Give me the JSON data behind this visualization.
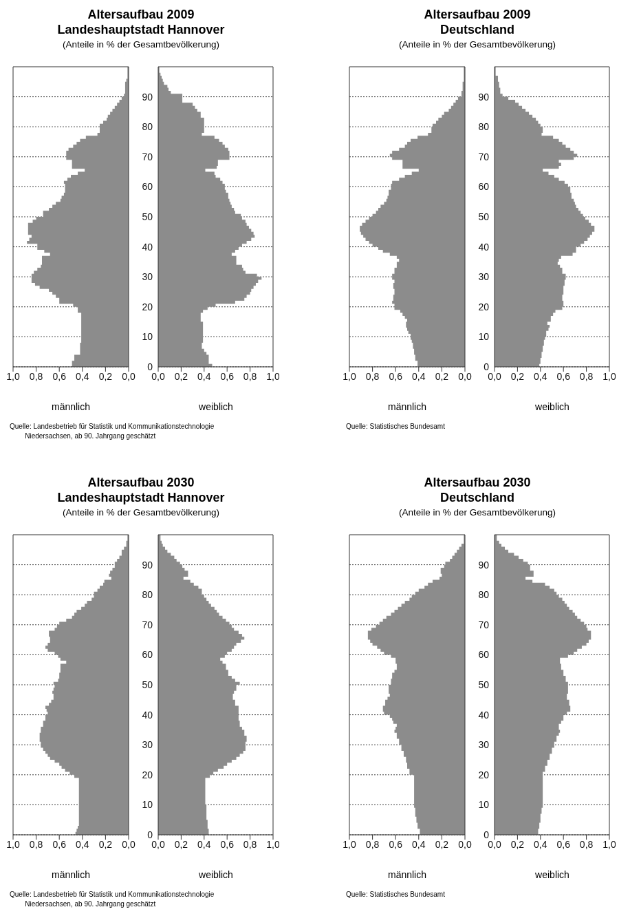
{
  "chart_data": [
    {
      "type": "area",
      "orientation": "horizontal",
      "title": "Altersaufbau 2009\nLandeshauptstadt Hannover",
      "subtitle": "(Anteile in % der Gesamtbevölkerung)",
      "xlabel": "männlich",
      "annotations": [
        "Quelle: Landesbetrieb für Statistik und Kommunikationstechnologie\n        Niedersachsen, ab 90. Jahrgang geschätzt"
      ],
      "color": "#8c8c8c",
      "xlim": [
        1,
        0
      ],
      "xticks": [
        {
          "value": 1,
          "label": "1,0"
        },
        {
          "value": 0.8,
          "label": "0,8"
        },
        {
          "value": 0.6,
          "label": "0,6"
        },
        {
          "value": 0.4,
          "label": "0,4"
        },
        {
          "value": 0.2,
          "label": "0,2"
        },
        {
          "value": 0,
          "label": "0,0"
        }
      ],
      "ylim": [
        0,
        100
      ],
      "yticks": [
        0,
        10,
        20,
        30,
        40,
        50,
        60,
        70,
        80,
        90
      ],
      "grid": "y",
      "tick_labels": "x",
      "x": [
        0,
        2,
        4,
        8,
        18,
        20,
        21,
        23,
        24,
        25,
        26,
        27,
        28,
        31,
        32,
        33,
        34,
        37,
        38,
        39,
        41,
        42,
        43,
        44,
        48,
        49,
        50,
        52,
        53,
        54,
        55,
        56,
        57,
        58,
        61,
        62,
        63,
        64,
        65,
        66,
        69,
        72,
        73,
        74,
        75,
        76,
        77,
        78,
        81,
        82,
        83,
        84,
        85,
        86,
        87,
        88,
        89,
        90,
        91,
        95,
        96,
        100
      ],
      "values": [
        0.49,
        0.47,
        0.42,
        0.41,
        0.44,
        0.48,
        0.6,
        0.63,
        0.66,
        0.69,
        0.77,
        0.81,
        0.84,
        0.82,
        0.79,
        0.76,
        0.75,
        0.68,
        0.73,
        0.79,
        0.88,
        0.86,
        0.84,
        0.87,
        0.83,
        0.8,
        0.74,
        0.69,
        0.66,
        0.63,
        0.59,
        0.58,
        0.56,
        0.55,
        0.56,
        0.53,
        0.5,
        0.44,
        0.38,
        0.49,
        0.54,
        0.52,
        0.48,
        0.45,
        0.42,
        0.37,
        0.27,
        0.25,
        0.22,
        0.19,
        0.18,
        0.16,
        0.14,
        0.12,
        0.1,
        0.08,
        0.06,
        0.04,
        0.03,
        0.02,
        0.01,
        0.01
      ]
    },
    {
      "type": "area",
      "orientation": "horizontal",
      "xlabel": "weiblich",
      "color": "#8c8c8c",
      "xlim": [
        0,
        1
      ],
      "xticks": [
        {
          "value": 0,
          "label": "0,0"
        },
        {
          "value": 0.2,
          "label": "0,2"
        },
        {
          "value": 0.4,
          "label": "0,4"
        },
        {
          "value": 0.6,
          "label": "0,6"
        },
        {
          "value": 0.8,
          "label": "0,8"
        },
        {
          "value": 1,
          "label": "1,0"
        }
      ],
      "ylim": [
        0,
        100
      ],
      "yticks": [
        0,
        10,
        20,
        30,
        40,
        50,
        60,
        70,
        80,
        90
      ],
      "grid": "y",
      "x": [
        0,
        1,
        4,
        5,
        6,
        8,
        15,
        18,
        19,
        20,
        21,
        22,
        23,
        24,
        25,
        26,
        27,
        28,
        29,
        30,
        31,
        32,
        33,
        34,
        37,
        38,
        39,
        40,
        41,
        42,
        43,
        44,
        45,
        46,
        47,
        48,
        49,
        50,
        51,
        52,
        53,
        54,
        55,
        56,
        58,
        59,
        61,
        62,
        63,
        64,
        65,
        66,
        67,
        69,
        72,
        73,
        74,
        75,
        76,
        77,
        78,
        83,
        85,
        86,
        87,
        88,
        91,
        92,
        93,
        94,
        95,
        96,
        97,
        98,
        100
      ],
      "values": [
        0.47,
        0.44,
        0.42,
        0.4,
        0.38,
        0.39,
        0.37,
        0.39,
        0.43,
        0.5,
        0.67,
        0.75,
        0.77,
        0.8,
        0.81,
        0.83,
        0.85,
        0.87,
        0.9,
        0.86,
        0.76,
        0.74,
        0.73,
        0.68,
        0.64,
        0.67,
        0.7,
        0.73,
        0.77,
        0.81,
        0.84,
        0.83,
        0.81,
        0.79,
        0.77,
        0.76,
        0.73,
        0.72,
        0.67,
        0.66,
        0.64,
        0.63,
        0.62,
        0.61,
        0.59,
        0.58,
        0.56,
        0.54,
        0.5,
        0.49,
        0.41,
        0.51,
        0.52,
        0.62,
        0.61,
        0.58,
        0.56,
        0.53,
        0.49,
        0.38,
        0.4,
        0.37,
        0.34,
        0.32,
        0.3,
        0.21,
        0.11,
        0.09,
        0.08,
        0.05,
        0.04,
        0.03,
        0.02,
        0.01,
        0.01
      ]
    },
    {
      "type": "area",
      "orientation": "horizontal",
      "title": "Altersaufbau 2009\nDeutschland",
      "subtitle": "(Anteile in % der Gesamtbevölkerung)",
      "xlabel": "männlich",
      "annotations": [
        "Quelle: Statistisches Bundesamt"
      ],
      "color": "#8c8c8c",
      "xlim": [
        1,
        0
      ],
      "xticks": [
        {
          "value": 1,
          "label": "1,0"
        },
        {
          "value": 0.8,
          "label": "0,8"
        },
        {
          "value": 0.6,
          "label": "0,6"
        },
        {
          "value": 0.4,
          "label": "0,4"
        },
        {
          "value": 0.2,
          "label": "0,2"
        },
        {
          "value": 0,
          "label": "0,0"
        }
      ],
      "ylim": [
        0,
        100
      ],
      "yticks": [
        0,
        10,
        20,
        30,
        40,
        50,
        60,
        70,
        80,
        90
      ],
      "grid": "y",
      "tick_labels": "x",
      "x": [
        0,
        2,
        4,
        6,
        8,
        9,
        11,
        12,
        13,
        15,
        16,
        17,
        18,
        19,
        21,
        22,
        24,
        26,
        28,
        29,
        31,
        33,
        35,
        36,
        37,
        38,
        39,
        40,
        41,
        42,
        43,
        44,
        45,
        47,
        48,
        49,
        50,
        51,
        52,
        53,
        54,
        55,
        56,
        57,
        59,
        61,
        62,
        63,
        64,
        65,
        66,
        69,
        70,
        71,
        72,
        73,
        74,
        75,
        76,
        77,
        78,
        80,
        81,
        82,
        83,
        84,
        85,
        86,
        87,
        88,
        89,
        90,
        92,
        95,
        100
      ],
      "values": [
        0.41,
        0.43,
        0.44,
        0.45,
        0.46,
        0.47,
        0.49,
        0.5,
        0.51,
        0.5,
        0.52,
        0.54,
        0.56,
        0.61,
        0.63,
        0.62,
        0.61,
        0.62,
        0.61,
        0.63,
        0.61,
        0.59,
        0.57,
        0.59,
        0.65,
        0.71,
        0.75,
        0.8,
        0.83,
        0.86,
        0.88,
        0.9,
        0.91,
        0.89,
        0.86,
        0.83,
        0.8,
        0.77,
        0.75,
        0.73,
        0.7,
        0.68,
        0.67,
        0.66,
        0.64,
        0.63,
        0.57,
        0.52,
        0.46,
        0.4,
        0.54,
        0.63,
        0.65,
        0.63,
        0.57,
        0.52,
        0.5,
        0.47,
        0.41,
        0.32,
        0.29,
        0.28,
        0.25,
        0.23,
        0.2,
        0.18,
        0.14,
        0.12,
        0.1,
        0.08,
        0.06,
        0.03,
        0.02,
        0.01,
        0.01
      ]
    },
    {
      "type": "area",
      "orientation": "horizontal",
      "xlabel": "weiblich",
      "color": "#8c8c8c",
      "xlim": [
        0,
        1
      ],
      "xticks": [
        {
          "value": 0,
          "label": "0,0"
        },
        {
          "value": 0.2,
          "label": "0,2"
        },
        {
          "value": 0.4,
          "label": "0,4"
        },
        {
          "value": 0.6,
          "label": "0,6"
        },
        {
          "value": 0.8,
          "label": "0,8"
        },
        {
          "value": 1,
          "label": "1,0"
        }
      ],
      "ylim": [
        0,
        100
      ],
      "yticks": [
        0,
        10,
        20,
        30,
        40,
        50,
        60,
        70,
        80,
        90
      ],
      "grid": "y",
      "x": [
        0,
        1,
        3,
        5,
        7,
        9,
        10,
        12,
        13,
        14,
        15,
        17,
        18,
        19,
        20,
        22,
        24,
        27,
        29,
        31,
        33,
        34,
        35,
        36,
        37,
        38,
        40,
        41,
        42,
        43,
        44,
        45,
        47,
        48,
        49,
        50,
        51,
        52,
        53,
        54,
        55,
        56,
        58,
        60,
        61,
        62,
        63,
        64,
        65,
        66,
        67,
        68,
        69,
        70,
        71,
        72,
        73,
        74,
        75,
        76,
        77,
        78,
        80,
        81,
        82,
        83,
        84,
        85,
        86,
        87,
        88,
        89,
        90,
        91,
        93,
        95,
        97,
        100
      ],
      "values": [
        0.39,
        0.4,
        0.41,
        0.42,
        0.43,
        0.44,
        0.45,
        0.47,
        0.48,
        0.46,
        0.49,
        0.51,
        0.53,
        0.59,
        0.6,
        0.59,
        0.6,
        0.61,
        0.62,
        0.59,
        0.57,
        0.55,
        0.56,
        0.58,
        0.68,
        0.71,
        0.75,
        0.78,
        0.81,
        0.83,
        0.85,
        0.87,
        0.84,
        0.82,
        0.79,
        0.77,
        0.75,
        0.73,
        0.71,
        0.7,
        0.69,
        0.67,
        0.66,
        0.64,
        0.61,
        0.56,
        0.52,
        0.47,
        0.42,
        0.56,
        0.58,
        0.56,
        0.69,
        0.72,
        0.69,
        0.66,
        0.62,
        0.59,
        0.56,
        0.51,
        0.41,
        0.42,
        0.4,
        0.38,
        0.36,
        0.33,
        0.3,
        0.27,
        0.24,
        0.21,
        0.18,
        0.12,
        0.07,
        0.05,
        0.04,
        0.03,
        0.01,
        0.01
      ]
    },
    {
      "type": "area",
      "orientation": "horizontal",
      "title": "Altersaufbau 2030\nLandeshauptstadt Hannover",
      "subtitle": "(Anteile in % der Gesamtbevölkerung)",
      "xlabel": "männlich",
      "annotations": [
        "Quelle: Landesbetrieb für Statistik und Kommunikationstechnologie\n        Niedersachsen, ab 90. Jahrgang geschätzt"
      ],
      "color": "#8c8c8c",
      "xlim": [
        1,
        0
      ],
      "xticks": [
        {
          "value": 1,
          "label": "1,0"
        },
        {
          "value": 0.8,
          "label": "0,8"
        },
        {
          "value": 0.6,
          "label": "0,6"
        },
        {
          "value": 0.4,
          "label": "0,4"
        },
        {
          "value": 0.2,
          "label": "0,2"
        },
        {
          "value": 0,
          "label": "0,0"
        }
      ],
      "ylim": [
        0,
        100
      ],
      "yticks": [
        0,
        10,
        20,
        30,
        40,
        50,
        60,
        70,
        80,
        90
      ],
      "grid": "y",
      "tick_labels": "x",
      "x": [
        0,
        1,
        2,
        3,
        19,
        20,
        21,
        22,
        23,
        24,
        25,
        26,
        27,
        28,
        29,
        31,
        34,
        36,
        38,
        40,
        41,
        42,
        43,
        44,
        45,
        47,
        48,
        49,
        50,
        51,
        52,
        54,
        57,
        58,
        59,
        60,
        61,
        62,
        63,
        64,
        66,
        68,
        69,
        70,
        71,
        72,
        73,
        74,
        75,
        76,
        77,
        78,
        79,
        81,
        82,
        83,
        84,
        85,
        86,
        87,
        88,
        89,
        91,
        92,
        93,
        95,
        96,
        98,
        100
      ],
      "values": [
        0.46,
        0.45,
        0.44,
        0.43,
        0.47,
        0.51,
        0.55,
        0.58,
        0.6,
        0.64,
        0.68,
        0.7,
        0.72,
        0.74,
        0.76,
        0.77,
        0.76,
        0.74,
        0.72,
        0.7,
        0.71,
        0.72,
        0.69,
        0.67,
        0.65,
        0.66,
        0.65,
        0.64,
        0.65,
        0.61,
        0.6,
        0.59,
        0.54,
        0.59,
        0.61,
        0.64,
        0.7,
        0.72,
        0.7,
        0.68,
        0.69,
        0.64,
        0.62,
        0.6,
        0.54,
        0.49,
        0.47,
        0.45,
        0.41,
        0.38,
        0.36,
        0.32,
        0.3,
        0.27,
        0.25,
        0.22,
        0.21,
        0.15,
        0.17,
        0.16,
        0.14,
        0.12,
        0.1,
        0.08,
        0.06,
        0.04,
        0.02,
        0.01,
        0.01
      ]
    },
    {
      "type": "area",
      "orientation": "horizontal",
      "xlabel": "weiblich",
      "color": "#8c8c8c",
      "xlim": [
        0,
        1
      ],
      "xticks": [
        {
          "value": 0,
          "label": "0,0"
        },
        {
          "value": 0.2,
          "label": "0,2"
        },
        {
          "value": 0.4,
          "label": "0,4"
        },
        {
          "value": 0.6,
          "label": "0,6"
        },
        {
          "value": 0.8,
          "label": "0,8"
        },
        {
          "value": 1,
          "label": "1,0"
        }
      ],
      "ylim": [
        0,
        100
      ],
      "yticks": [
        0,
        10,
        20,
        30,
        40,
        50,
        60,
        70,
        80,
        90
      ],
      "grid": "y",
      "x": [
        0,
        2,
        5,
        10,
        19,
        20,
        21,
        22,
        23,
        24,
        25,
        26,
        27,
        28,
        31,
        33,
        35,
        36,
        38,
        43,
        45,
        47,
        48,
        50,
        51,
        52,
        53,
        55,
        57,
        58,
        59,
        60,
        61,
        62,
        63,
        64,
        65,
        66,
        67,
        68,
        69,
        70,
        71,
        72,
        73,
        74,
        75,
        76,
        77,
        78,
        79,
        80,
        82,
        83,
        84,
        85,
        86,
        88,
        89,
        90,
        91,
        92,
        93,
        94,
        95,
        96,
        97,
        98,
        100
      ],
      "values": [
        0.44,
        0.43,
        0.42,
        0.41,
        0.45,
        0.48,
        0.52,
        0.57,
        0.6,
        0.64,
        0.68,
        0.71,
        0.74,
        0.76,
        0.77,
        0.75,
        0.73,
        0.71,
        0.7,
        0.67,
        0.65,
        0.66,
        0.68,
        0.71,
        0.67,
        0.64,
        0.61,
        0.59,
        0.56,
        0.54,
        0.58,
        0.6,
        0.64,
        0.66,
        0.68,
        0.72,
        0.75,
        0.73,
        0.7,
        0.66,
        0.64,
        0.62,
        0.59,
        0.56,
        0.53,
        0.51,
        0.49,
        0.46,
        0.44,
        0.42,
        0.4,
        0.38,
        0.35,
        0.31,
        0.28,
        0.22,
        0.26,
        0.23,
        0.21,
        0.19,
        0.16,
        0.14,
        0.11,
        0.08,
        0.06,
        0.04,
        0.03,
        0.02,
        0.02
      ]
    },
    {
      "type": "area",
      "orientation": "horizontal",
      "title": "Altersaufbau 2030\nDeutschland",
      "subtitle": "(Anteile in % der Gesamtbevölkerung)",
      "xlabel": "männlich",
      "annotations": [
        "Quelle: Statistisches Bundesamt"
      ],
      "color": "#8c8c8c",
      "xlim": [
        1,
        0
      ],
      "xticks": [
        {
          "value": 1,
          "label": "1,0"
        },
        {
          "value": 0.8,
          "label": "0,8"
        },
        {
          "value": 0.6,
          "label": "0,6"
        },
        {
          "value": 0.4,
          "label": "0,4"
        },
        {
          "value": 0.2,
          "label": "0,2"
        },
        {
          "value": 0,
          "label": "0,0"
        }
      ],
      "ylim": [
        0,
        100
      ],
      "yticks": [
        0,
        10,
        20,
        30,
        40,
        50,
        60,
        70,
        80,
        90
      ],
      "grid": "y",
      "tick_labels": "x",
      "x": [
        0,
        2,
        4,
        6,
        9,
        20,
        22,
        24,
        26,
        28,
        30,
        32,
        34,
        35,
        36,
        37,
        38,
        39,
        40,
        41,
        43,
        45,
        46,
        47,
        50,
        52,
        54,
        55,
        57,
        59,
        60,
        61,
        62,
        63,
        64,
        65,
        68,
        69,
        70,
        71,
        72,
        73,
        74,
        75,
        76,
        77,
        78,
        79,
        80,
        81,
        82,
        83,
        84,
        85,
        86,
        87,
        89,
        90,
        91,
        92,
        93,
        94,
        95,
        96,
        97,
        100
      ],
      "values": [
        0.39,
        0.41,
        0.42,
        0.43,
        0.44,
        0.48,
        0.5,
        0.51,
        0.53,
        0.55,
        0.57,
        0.59,
        0.61,
        0.6,
        0.59,
        0.62,
        0.63,
        0.65,
        0.7,
        0.71,
        0.69,
        0.67,
        0.65,
        0.66,
        0.64,
        0.63,
        0.61,
        0.59,
        0.6,
        0.64,
        0.7,
        0.73,
        0.76,
        0.8,
        0.82,
        0.84,
        0.81,
        0.77,
        0.74,
        0.71,
        0.68,
        0.64,
        0.61,
        0.58,
        0.55,
        0.52,
        0.48,
        0.46,
        0.43,
        0.4,
        0.35,
        0.32,
        0.28,
        0.22,
        0.2,
        0.21,
        0.18,
        0.17,
        0.13,
        0.11,
        0.09,
        0.07,
        0.05,
        0.03,
        0.01,
        0.01
      ]
    },
    {
      "type": "area",
      "orientation": "horizontal",
      "xlabel": "weiblich",
      "color": "#8c8c8c",
      "xlim": [
        0,
        1
      ],
      "xticks": [
        {
          "value": 0,
          "label": "0,0"
        },
        {
          "value": 0.2,
          "label": "0,2"
        },
        {
          "value": 0.4,
          "label": "0,4"
        },
        {
          "value": 0.6,
          "label": "0,6"
        },
        {
          "value": 0.8,
          "label": "0,8"
        },
        {
          "value": 1,
          "label": "1,0"
        }
      ],
      "ylim": [
        0,
        100
      ],
      "yticks": [
        0,
        10,
        20,
        30,
        40,
        50,
        60,
        70,
        80,
        90
      ],
      "grid": "y",
      "x": [
        0,
        2,
        4,
        7,
        9,
        21,
        23,
        25,
        27,
        29,
        31,
        33,
        34,
        35,
        37,
        38,
        40,
        41,
        43,
        45,
        47,
        51,
        53,
        55,
        57,
        59,
        60,
        61,
        62,
        63,
        64,
        65,
        68,
        69,
        70,
        71,
        72,
        73,
        74,
        75,
        76,
        77,
        78,
        79,
        80,
        81,
        82,
        83,
        84,
        85,
        86,
        88,
        90,
        91,
        92,
        93,
        94,
        95,
        96,
        97,
        98,
        100
      ],
      "values": [
        0.38,
        0.39,
        0.4,
        0.41,
        0.42,
        0.44,
        0.46,
        0.48,
        0.5,
        0.52,
        0.54,
        0.56,
        0.57,
        0.56,
        0.58,
        0.6,
        0.63,
        0.66,
        0.65,
        0.63,
        0.64,
        0.62,
        0.6,
        0.58,
        0.57,
        0.64,
        0.69,
        0.72,
        0.76,
        0.8,
        0.82,
        0.84,
        0.81,
        0.8,
        0.78,
        0.75,
        0.72,
        0.7,
        0.68,
        0.65,
        0.63,
        0.61,
        0.59,
        0.56,
        0.54,
        0.52,
        0.48,
        0.44,
        0.33,
        0.27,
        0.34,
        0.31,
        0.29,
        0.25,
        0.21,
        0.17,
        0.12,
        0.09,
        0.06,
        0.04,
        0.02,
        0.02
      ]
    }
  ]
}
